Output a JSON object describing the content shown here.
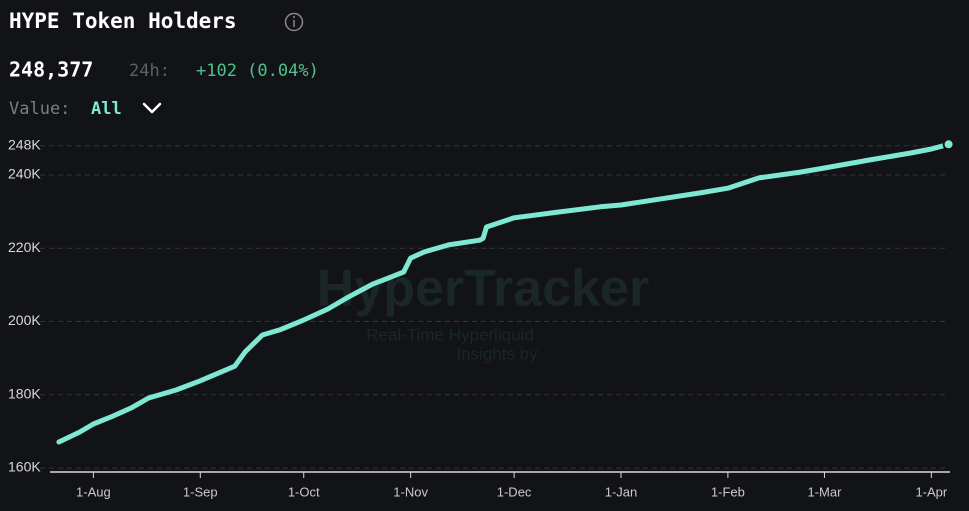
{
  "header": {
    "current_value": "248,377",
    "change_label": "24h:",
    "change": "+102 (0.04%)",
    "filter_label": "Value:",
    "filter": "All"
  },
  "watermark": {
    "brand": "HyperTracker",
    "tagline_1": "Real-Time Hyperliquid",
    "tagline_2": "Insights by"
  },
  "chart_data": {
    "type": "line",
    "title": "HYPE Token Holders",
    "color": "#7ee8d2",
    "grid": true,
    "x": [
      "22-Jul",
      "28-Jul",
      "1-Aug",
      "6-Aug",
      "12-Aug",
      "17-Aug",
      "25-Aug",
      "1-Sep",
      "5-Sep",
      "11-Sep",
      "14-Sep",
      "19-Sep",
      "24-Sep",
      "1-Oct",
      "8-Oct",
      "14-Oct",
      "21-Oct",
      "27-Oct",
      "30-Oct",
      "1-Nov",
      "5-Nov",
      "12-Nov",
      "21-Nov",
      "22-Nov",
      "23-Nov",
      "1-Dec",
      "14-Dec",
      "26-Dec",
      "1-Jan",
      "12-Jan",
      "24-Jan",
      "1-Feb",
      "10-Feb",
      "22-Feb",
      "1-Mar",
      "14-Mar",
      "26-Mar",
      "1-Apr",
      "6-Apr"
    ],
    "values": [
      167100,
      169800,
      172000,
      173900,
      176400,
      179100,
      181300,
      183800,
      185400,
      187800,
      191700,
      196300,
      197700,
      200400,
      203400,
      206700,
      210200,
      212400,
      213500,
      217300,
      219000,
      220900,
      222200,
      222700,
      225800,
      228300,
      229900,
      231300,
      231800,
      233400,
      235100,
      236400,
      239200,
      240800,
      241900,
      244100,
      246000,
      247100,
      248377
    ],
    "xlim": [
      "20-Jul",
      "8-Apr"
    ],
    "xticks": [
      "1-Aug",
      "1-Sep",
      "1-Oct",
      "1-Nov",
      "1-Dec",
      "1-Jan",
      "1-Feb",
      "1-Mar",
      "1-Apr"
    ],
    "ylim": [
      158900,
      250700
    ],
    "yticks": [
      {
        "value": 160000,
        "label": "160K"
      },
      {
        "value": 180000,
        "label": "180K"
      },
      {
        "value": 200000,
        "label": "200K"
      },
      {
        "value": 220000,
        "label": "220K"
      },
      {
        "value": 240000,
        "label": "240K"
      },
      {
        "value": 248000,
        "label": "248K"
      }
    ]
  }
}
